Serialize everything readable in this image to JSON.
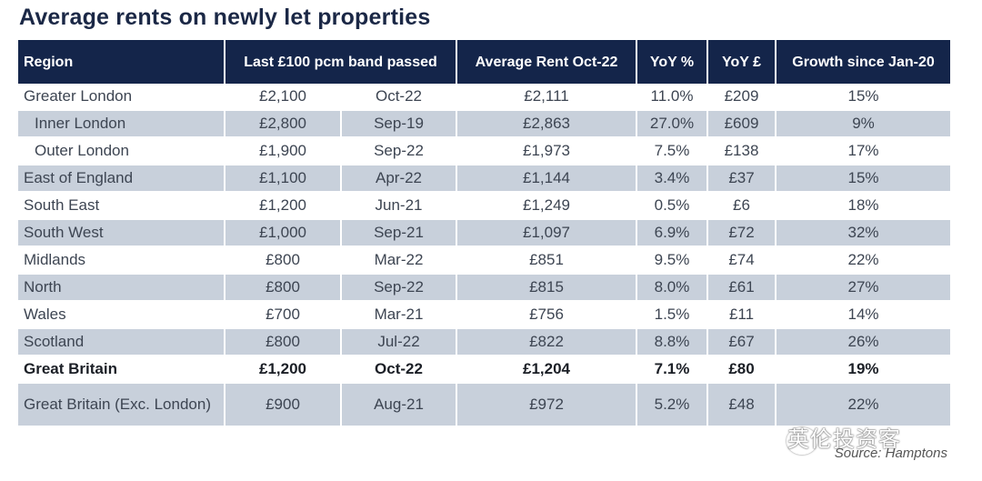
{
  "title": "Average rents on newly let properties",
  "source": "Source: Hamptons",
  "watermark": "英伦投资客",
  "colors": {
    "header_bg": "#14254a",
    "stripe": "#c8d0db",
    "title": "#1b2846"
  },
  "chart_data": {
    "type": "table",
    "title": "Average rents on newly let properties",
    "columns": [
      "Region",
      "Last £100 pcm band passed",
      "Average Rent Oct-22",
      "YoY %",
      "YoY £",
      "Growth since Jan-20"
    ],
    "rows": [
      {
        "region": "Greater London",
        "band": "£2,100",
        "band_date": "Oct-22",
        "avg_rent": "£2,111",
        "yoy_pct": "11.0%",
        "yoy_gbp": "£209",
        "growth": "15%"
      },
      {
        "region": "Inner London",
        "band": "£2,800",
        "band_date": "Sep-19",
        "avg_rent": "£2,863",
        "yoy_pct": "27.0%",
        "yoy_gbp": "£609",
        "growth": "9%"
      },
      {
        "region": "Outer London",
        "band": "£1,900",
        "band_date": "Sep-22",
        "avg_rent": "£1,973",
        "yoy_pct": "7.5%",
        "yoy_gbp": "£138",
        "growth": "17%"
      },
      {
        "region": "East of England",
        "band": "£1,100",
        "band_date": "Apr-22",
        "avg_rent": "£1,144",
        "yoy_pct": "3.4%",
        "yoy_gbp": "£37",
        "growth": "15%"
      },
      {
        "region": "South East",
        "band": "£1,200",
        "band_date": "Jun-21",
        "avg_rent": "£1,249",
        "yoy_pct": "0.5%",
        "yoy_gbp": "£6",
        "growth": "18%"
      },
      {
        "region": "South West",
        "band": "£1,000",
        "band_date": "Sep-21",
        "avg_rent": "£1,097",
        "yoy_pct": "6.9%",
        "yoy_gbp": "£72",
        "growth": "32%"
      },
      {
        "region": "Midlands",
        "band": "£800",
        "band_date": "Mar-22",
        "avg_rent": "£851",
        "yoy_pct": "9.5%",
        "yoy_gbp": "£74",
        "growth": "22%"
      },
      {
        "region": "North",
        "band": "£800",
        "band_date": "Sep-22",
        "avg_rent": "£815",
        "yoy_pct": "8.0%",
        "yoy_gbp": "£61",
        "growth": "27%"
      },
      {
        "region": "Wales",
        "band": "£700",
        "band_date": "Mar-21",
        "avg_rent": "£756",
        "yoy_pct": "1.5%",
        "yoy_gbp": "£11",
        "growth": "14%"
      },
      {
        "region": "Scotland",
        "band": "£800",
        "band_date": "Jul-22",
        "avg_rent": "£822",
        "yoy_pct": "8.8%",
        "yoy_gbp": "£67",
        "growth": "26%"
      },
      {
        "region": "Great Britain",
        "band": "£1,200",
        "band_date": "Oct-22",
        "avg_rent": "£1,204",
        "yoy_pct": "7.1%",
        "yoy_gbp": "£80",
        "growth": "19%",
        "bold": true
      },
      {
        "region": "Great Britain (Exc. London)",
        "band": "£900",
        "band_date": "Aug-21",
        "avg_rent": "£972",
        "yoy_pct": "5.2%",
        "yoy_gbp": "£48",
        "growth": "22%"
      }
    ],
    "indented_rows": [
      "Inner London",
      "Outer London"
    ]
  }
}
